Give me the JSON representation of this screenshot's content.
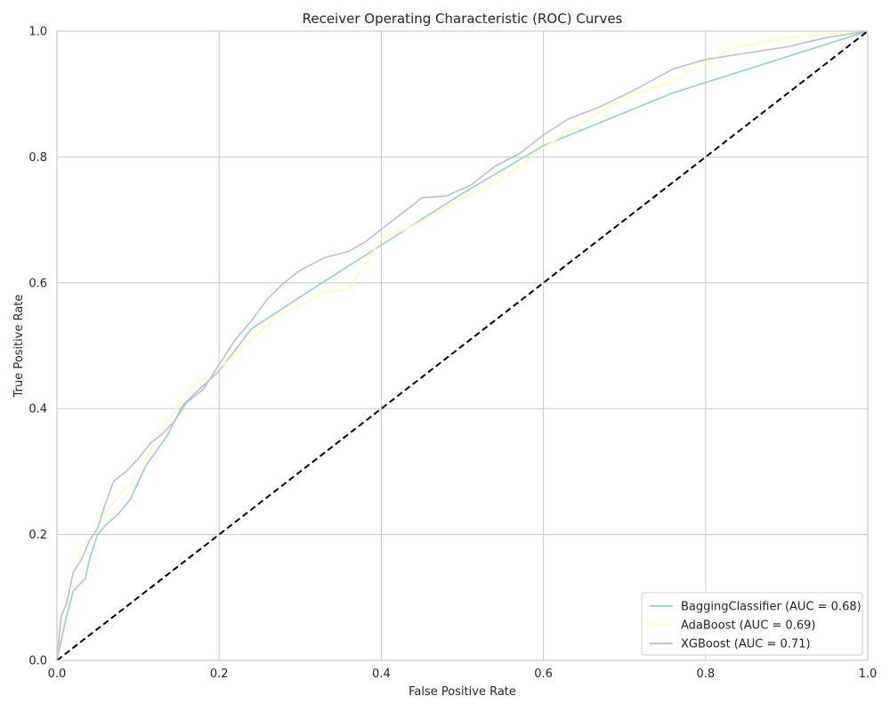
{
  "chart_data": {
    "type": "line",
    "title": "Receiver Operating Characteristic (ROC) Curves",
    "xlabel": "False Positive Rate",
    "ylabel": "True Positive Rate",
    "xlim": [
      0.0,
      1.0
    ],
    "ylim": [
      0.0,
      1.0
    ],
    "xticks": [
      "0.0",
      "0.2",
      "0.4",
      "0.6",
      "0.8",
      "1.0"
    ],
    "yticks": [
      "0.0",
      "0.2",
      "0.4",
      "0.6",
      "0.8",
      "1.0"
    ],
    "grid": true,
    "legend_position": "lower-right",
    "series": [
      {
        "name": "BaggingClassifier (AUC = 0.68)",
        "color": "#8dd3c7",
        "x": [
          0.0,
          0.01,
          0.02,
          0.035,
          0.04,
          0.05,
          0.06,
          0.075,
          0.09,
          0.11,
          0.135,
          0.155,
          0.175,
          0.2,
          0.24,
          0.31,
          0.4,
          0.5,
          0.6,
          0.76,
          1.0
        ],
        "y": [
          0.0,
          0.06,
          0.11,
          0.13,
          0.16,
          0.2,
          0.215,
          0.232,
          0.255,
          0.31,
          0.355,
          0.405,
          0.43,
          0.46,
          0.527,
          0.586,
          0.66,
          0.742,
          0.818,
          0.902,
          1.0
        ]
      },
      {
        "name": "AdaBoost (AUC = 0.69)",
        "color": "#ffffb3",
        "x": [
          0.0,
          0.008,
          0.018,
          0.03,
          0.045,
          0.06,
          0.075,
          0.09,
          0.105,
          0.12,
          0.135,
          0.15,
          0.165,
          0.185,
          0.21,
          0.24,
          0.27,
          0.3,
          0.33,
          0.36,
          0.38,
          0.4,
          0.43,
          0.46,
          0.5,
          0.55,
          0.6,
          0.65,
          0.7,
          0.76,
          0.8,
          0.84,
          0.9,
          1.0
        ],
        "y": [
          0.0,
          0.08,
          0.13,
          0.18,
          0.2,
          0.235,
          0.26,
          0.28,
          0.31,
          0.345,
          0.375,
          0.405,
          0.435,
          0.45,
          0.475,
          0.51,
          0.545,
          0.565,
          0.585,
          0.59,
          0.63,
          0.67,
          0.685,
          0.705,
          0.735,
          0.765,
          0.815,
          0.855,
          0.895,
          0.92,
          0.95,
          0.975,
          0.99,
          1.0
        ]
      },
      {
        "name": "XGBoost (AUC = 0.71)",
        "color": "#bebada",
        "x": [
          0.0,
          0.005,
          0.012,
          0.02,
          0.03,
          0.04,
          0.05,
          0.06,
          0.07,
          0.085,
          0.1,
          0.115,
          0.13,
          0.145,
          0.16,
          0.18,
          0.2,
          0.22,
          0.24,
          0.26,
          0.28,
          0.3,
          0.33,
          0.36,
          0.38,
          0.4,
          0.42,
          0.45,
          0.48,
          0.51,
          0.54,
          0.57,
          0.6,
          0.63,
          0.67,
          0.71,
          0.76,
          0.8,
          0.85,
          0.9,
          0.95,
          1.0
        ],
        "y": [
          0.0,
          0.07,
          0.09,
          0.14,
          0.16,
          0.19,
          0.21,
          0.25,
          0.285,
          0.3,
          0.32,
          0.345,
          0.36,
          0.38,
          0.41,
          0.43,
          0.47,
          0.51,
          0.54,
          0.575,
          0.6,
          0.62,
          0.64,
          0.65,
          0.665,
          0.685,
          0.705,
          0.735,
          0.738,
          0.755,
          0.785,
          0.805,
          0.835,
          0.86,
          0.88,
          0.905,
          0.94,
          0.955,
          0.965,
          0.975,
          0.99,
          1.0
        ]
      },
      {
        "name": "",
        "color": "#000000",
        "dashed": true,
        "x": [
          0.0,
          1.0
        ],
        "y": [
          0.0,
          1.0
        ]
      }
    ]
  }
}
